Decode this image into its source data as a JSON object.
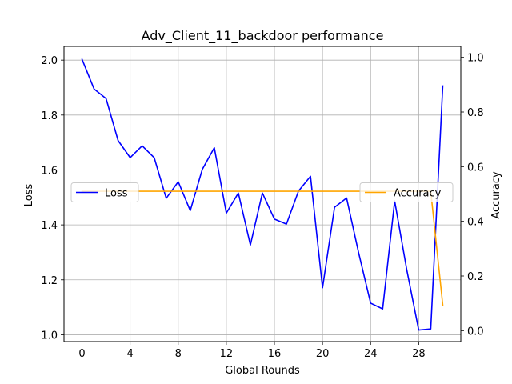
{
  "chart_data": {
    "type": "line",
    "title": "Adv_Client_11_backdoor performance",
    "xlabel": "Global Rounds",
    "ylabel_left": "Loss",
    "ylabel_right": "Accuracy",
    "xlim": [
      -1.5,
      31.5
    ],
    "ylim_left": [
      0.975,
      2.05
    ],
    "ylim_right": [
      -0.04,
      1.04
    ],
    "xticks": [
      0,
      4,
      8,
      12,
      16,
      20,
      24,
      28
    ],
    "yticks_left": [
      1.0,
      1.2,
      1.4,
      1.6,
      1.8,
      2.0
    ],
    "yticks_right": [
      0.0,
      0.2,
      0.4,
      0.6,
      0.8,
      1.0
    ],
    "grid": true,
    "x": [
      0,
      1,
      2,
      3,
      4,
      5,
      6,
      7,
      8,
      9,
      10,
      11,
      12,
      13,
      14,
      15,
      16,
      17,
      18,
      19,
      20,
      21,
      22,
      23,
      24,
      25,
      26,
      27,
      28,
      29,
      30
    ],
    "series": [
      {
        "name": "Loss",
        "axis": "left",
        "color": "#0000ff",
        "legend_position": "center-left",
        "values": [
          2.003,
          1.895,
          1.86,
          1.707,
          1.645,
          1.688,
          1.645,
          1.497,
          1.557,
          1.452,
          1.602,
          1.681,
          1.443,
          1.516,
          1.327,
          1.516,
          1.421,
          1.403,
          1.523,
          1.577,
          1.171,
          1.464,
          1.498,
          1.299,
          1.115,
          1.094,
          1.487,
          1.238,
          1.017,
          1.021,
          1.906
        ]
      },
      {
        "name": "Accuracy",
        "axis": "right",
        "color": "#ffa500",
        "legend_position": "center-right",
        "values": [
          0.51,
          0.51,
          0.51,
          0.51,
          0.51,
          0.51,
          0.51,
          0.51,
          0.51,
          0.51,
          0.51,
          0.51,
          0.51,
          0.51,
          0.51,
          0.51,
          0.51,
          0.51,
          0.51,
          0.51,
          0.51,
          0.51,
          0.51,
          0.51,
          0.51,
          0.51,
          0.51,
          0.51,
          0.51,
          0.51,
          0.094
        ]
      }
    ]
  }
}
